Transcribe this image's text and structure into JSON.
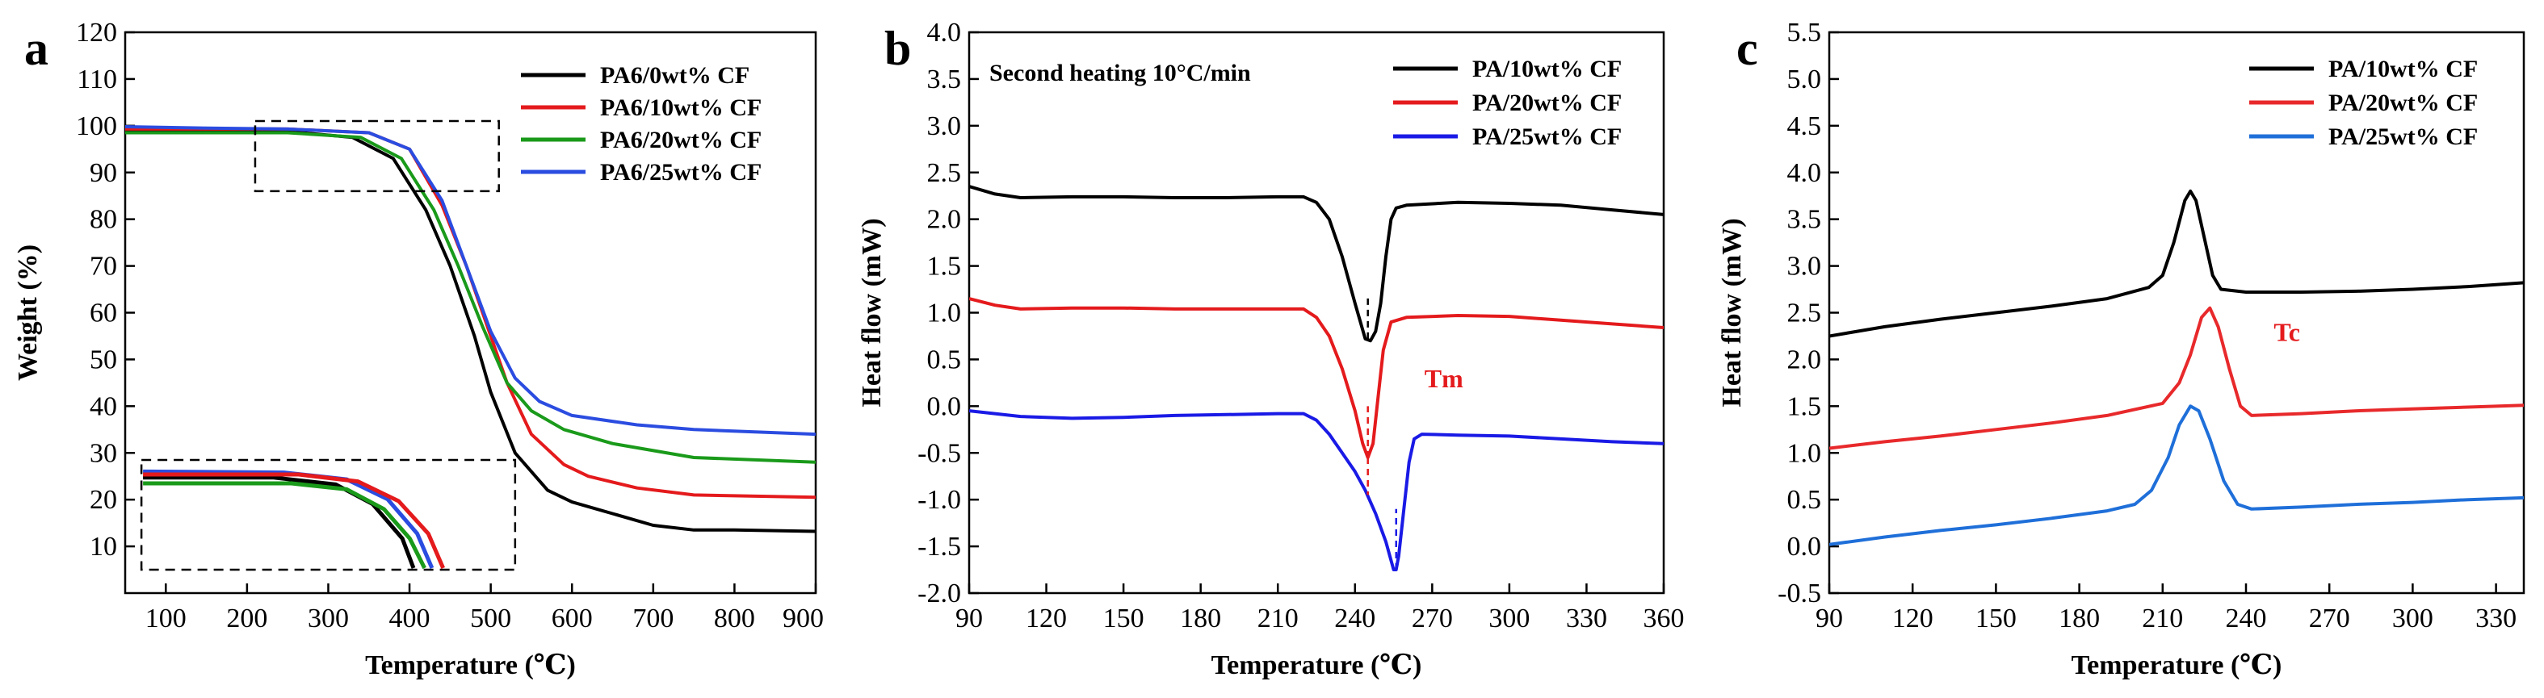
{
  "figure": {
    "panels": [
      "a",
      "b",
      "c"
    ]
  },
  "chart_data": [
    {
      "panel": "a",
      "type": "line",
      "title": "",
      "xlabel": "Temperature (℃)",
      "ylabel": "Weight (%)",
      "xlim": [
        50,
        900
      ],
      "ylim": [
        0,
        120
      ],
      "xticks": [
        100,
        200,
        300,
        400,
        500,
        600,
        700,
        800,
        "900"
      ],
      "yticks": [
        10,
        20,
        30,
        40,
        50,
        60,
        70,
        80,
        90,
        100,
        110,
        120
      ],
      "legend_position": "top-right",
      "series": [
        {
          "name": "PA6/0wt% CF",
          "color": "#000000",
          "points": [
            [
              50,
              98.8
            ],
            [
              150,
              98.8
            ],
            [
              250,
              98.8
            ],
            [
              330,
              97.5
            ],
            [
              380,
              93
            ],
            [
              420,
              82
            ],
            [
              450,
              70
            ],
            [
              480,
              55
            ],
            [
              500,
              43
            ],
            [
              530,
              30
            ],
            [
              570,
              22
            ],
            [
              600,
              19.5
            ],
            [
              650,
              17
            ],
            [
              700,
              14.5
            ],
            [
              750,
              13.5
            ],
            [
              800,
              13.5
            ],
            [
              900,
              13.2
            ]
          ]
        },
        {
          "name": "PA6/10wt% CF",
          "color": "#e41a1c",
          "points": [
            [
              50,
              99.3
            ],
            [
              150,
              99.3
            ],
            [
              250,
              99.3
            ],
            [
              350,
              98.5
            ],
            [
              400,
              95
            ],
            [
              440,
              83
            ],
            [
              470,
              70
            ],
            [
              500,
              55
            ],
            [
              520,
              45
            ],
            [
              550,
              34
            ],
            [
              590,
              27.5
            ],
            [
              620,
              25
            ],
            [
              680,
              22.5
            ],
            [
              750,
              21
            ],
            [
              900,
              20.5
            ]
          ]
        },
        {
          "name": "PA6/20wt% CF",
          "color": "#1a9a1a",
          "points": [
            [
              50,
              98.5
            ],
            [
              150,
              98.5
            ],
            [
              250,
              98.5
            ],
            [
              340,
              97.5
            ],
            [
              390,
              93
            ],
            [
              430,
              82
            ],
            [
              460,
              70
            ],
            [
              490,
              57
            ],
            [
              520,
              45
            ],
            [
              550,
              39
            ],
            [
              590,
              35
            ],
            [
              650,
              32
            ],
            [
              750,
              29
            ],
            [
              900,
              28
            ]
          ]
        },
        {
          "name": "PA6/25wt% CF",
          "color": "#2b4ce0",
          "points": [
            [
              50,
              99.8
            ],
            [
              150,
              99.5
            ],
            [
              250,
              99.3
            ],
            [
              350,
              98.5
            ],
            [
              400,
              95
            ],
            [
              440,
              84
            ],
            [
              470,
              70
            ],
            [
              500,
              56
            ],
            [
              530,
              46
            ],
            [
              560,
              41
            ],
            [
              600,
              38
            ],
            [
              680,
              36
            ],
            [
              750,
              35
            ],
            [
              900,
              34
            ]
          ]
        }
      ],
      "annotations": [
        "zoom-box-top",
        "zoom-box-inset"
      ]
    },
    {
      "panel": "b",
      "type": "line",
      "title": "",
      "xlabel": "Temperature (℃)",
      "ylabel": "Heat flow (mW)",
      "xlim": [
        90,
        360
      ],
      "ylim": [
        -2.0,
        4.0
      ],
      "xticks": [
        90,
        120,
        150,
        180,
        210,
        240,
        270,
        300,
        330,
        360
      ],
      "yticks": [
        "-2.0",
        "-1.5",
        "-1.0",
        "-0.5",
        "0.0",
        "0.5",
        "1.0",
        "1.5",
        "2.0",
        "2.5",
        "3.0",
        "3.5",
        "4.0"
      ],
      "legend_position": "top-right",
      "inset_text": "Second heating 10°C/min",
      "peak_label": "Tm",
      "peak_label_color": "#e41a1c",
      "series": [
        {
          "name": "PA/10wt% CF",
          "color": "#000000",
          "points": [
            [
              90,
              2.35
            ],
            [
              100,
              2.27
            ],
            [
              110,
              2.23
            ],
            [
              130,
              2.24
            ],
            [
              150,
              2.24
            ],
            [
              170,
              2.23
            ],
            [
              190,
              2.23
            ],
            [
              210,
              2.24
            ],
            [
              220,
              2.24
            ],
            [
              225,
              2.18
            ],
            [
              230,
              2.0
            ],
            [
              235,
              1.6
            ],
            [
              240,
              1.1
            ],
            [
              244,
              0.72
            ],
            [
              246,
              0.7
            ],
            [
              248,
              0.8
            ],
            [
              250,
              1.1
            ],
            [
              252,
              1.6
            ],
            [
              254,
              2.0
            ],
            [
              256,
              2.12
            ],
            [
              260,
              2.15
            ],
            [
              280,
              2.18
            ],
            [
              300,
              2.17
            ],
            [
              320,
              2.15
            ],
            [
              340,
              2.1
            ],
            [
              360,
              2.05
            ]
          ]
        },
        {
          "name": "PA/20wt% CF",
          "color": "#e41a1c",
          "points": [
            [
              90,
              1.15
            ],
            [
              100,
              1.08
            ],
            [
              110,
              1.04
            ],
            [
              130,
              1.05
            ],
            [
              150,
              1.05
            ],
            [
              170,
              1.04
            ],
            [
              190,
              1.04
            ],
            [
              210,
              1.04
            ],
            [
              220,
              1.04
            ],
            [
              225,
              0.95
            ],
            [
              230,
              0.75
            ],
            [
              235,
              0.4
            ],
            [
              240,
              -0.05
            ],
            [
              243,
              -0.4
            ],
            [
              245,
              -0.55
            ],
            [
              247,
              -0.4
            ],
            [
              249,
              0.1
            ],
            [
              251,
              0.6
            ],
            [
              254,
              0.9
            ],
            [
              260,
              0.95
            ],
            [
              280,
              0.97
            ],
            [
              300,
              0.96
            ],
            [
              320,
              0.92
            ],
            [
              340,
              0.88
            ],
            [
              360,
              0.84
            ]
          ]
        },
        {
          "name": "PA/25wt% CF",
          "color": "#1a1ae6",
          "points": [
            [
              90,
              -0.05
            ],
            [
              100,
              -0.08
            ],
            [
              110,
              -0.11
            ],
            [
              130,
              -0.13
            ],
            [
              150,
              -0.12
            ],
            [
              170,
              -0.1
            ],
            [
              190,
              -0.09
            ],
            [
              210,
              -0.08
            ],
            [
              220,
              -0.08
            ],
            [
              225,
              -0.15
            ],
            [
              230,
              -0.3
            ],
            [
              235,
              -0.5
            ],
            [
              240,
              -0.7
            ],
            [
              244,
              -0.9
            ],
            [
              248,
              -1.15
            ],
            [
              252,
              -1.45
            ],
            [
              255,
              -1.75
            ],
            [
              256,
              -1.75
            ],
            [
              257,
              -1.6
            ],
            [
              259,
              -1.1
            ],
            [
              261,
              -0.6
            ],
            [
              263,
              -0.35
            ],
            [
              266,
              -0.3
            ],
            [
              280,
              -0.31
            ],
            [
              300,
              -0.32
            ],
            [
              320,
              -0.35
            ],
            [
              340,
              -0.38
            ],
            [
              360,
              -0.4
            ]
          ]
        }
      ],
      "peak_markers": [
        {
          "x": 245,
          "y1": 0.72,
          "y2": 1.2,
          "color": "#000000"
        },
        {
          "x": 245,
          "y1": -0.55,
          "y2": 0.0,
          "color": "#e41a1c"
        },
        {
          "x": 245,
          "y1": -0.55,
          "y2": -0.95,
          "color": "#e41a1c"
        },
        {
          "x": 256,
          "y1": -1.75,
          "y2": -1.1,
          "color": "#1a1ae6"
        }
      ]
    },
    {
      "panel": "c",
      "type": "line",
      "title": "",
      "xlabel": "Temperature (℃)",
      "ylabel": "Heat flow (mW)",
      "xlim": [
        90,
        340
      ],
      "ylim": [
        -0.5,
        5.5
      ],
      "xticks": [
        90,
        120,
        150,
        180,
        210,
        240,
        270,
        300,
        330
      ],
      "yticks": [
        "-0.5",
        "0.0",
        "0.5",
        "1.0",
        "1.5",
        "2.0",
        "2.5",
        "3.0",
        "3.5",
        "4.0",
        "4.5",
        "5.0",
        "5.5"
      ],
      "legend_position": "top-right",
      "peak_label": "Tc",
      "peak_label_color": "#e41a1c",
      "series": [
        {
          "name": "PA/10wt% CF",
          "color": "#000000",
          "points": [
            [
              90,
              2.25
            ],
            [
              110,
              2.35
            ],
            [
              130,
              2.43
            ],
            [
              150,
              2.5
            ],
            [
              170,
              2.57
            ],
            [
              190,
              2.65
            ],
            [
              205,
              2.77
            ],
            [
              210,
              2.9
            ],
            [
              214,
              3.25
            ],
            [
              218,
              3.7
            ],
            [
              220,
              3.8
            ],
            [
              222,
              3.7
            ],
            [
              225,
              3.3
            ],
            [
              228,
              2.9
            ],
            [
              231,
              2.75
            ],
            [
              240,
              2.72
            ],
            [
              260,
              2.72
            ],
            [
              280,
              2.73
            ],
            [
              300,
              2.75
            ],
            [
              320,
              2.78
            ],
            [
              340,
              2.82
            ]
          ]
        },
        {
          "name": "PA/20wt% CF",
          "color": "#e8292b",
          "points": [
            [
              90,
              1.05
            ],
            [
              110,
              1.12
            ],
            [
              130,
              1.18
            ],
            [
              150,
              1.25
            ],
            [
              170,
              1.32
            ],
            [
              190,
              1.4
            ],
            [
              210,
              1.53
            ],
            [
              216,
              1.75
            ],
            [
              220,
              2.05
            ],
            [
              224,
              2.45
            ],
            [
              227,
              2.55
            ],
            [
              230,
              2.35
            ],
            [
              234,
              1.9
            ],
            [
              238,
              1.5
            ],
            [
              242,
              1.4
            ],
            [
              260,
              1.42
            ],
            [
              280,
              1.45
            ],
            [
              300,
              1.47
            ],
            [
              320,
              1.49
            ],
            [
              340,
              1.51
            ]
          ]
        },
        {
          "name": "PA/25wt% CF",
          "color": "#1f6fd9",
          "points": [
            [
              90,
              0.02
            ],
            [
              110,
              0.1
            ],
            [
              130,
              0.17
            ],
            [
              150,
              0.23
            ],
            [
              170,
              0.3
            ],
            [
              190,
              0.38
            ],
            [
              200,
              0.45
            ],
            [
              206,
              0.6
            ],
            [
              212,
              0.95
            ],
            [
              216,
              1.3
            ],
            [
              220,
              1.5
            ],
            [
              223,
              1.45
            ],
            [
              227,
              1.15
            ],
            [
              232,
              0.7
            ],
            [
              237,
              0.45
            ],
            [
              242,
              0.4
            ],
            [
              260,
              0.42
            ],
            [
              280,
              0.45
            ],
            [
              300,
              0.47
            ],
            [
              320,
              0.5
            ],
            [
              340,
              0.52
            ]
          ]
        }
      ]
    }
  ]
}
